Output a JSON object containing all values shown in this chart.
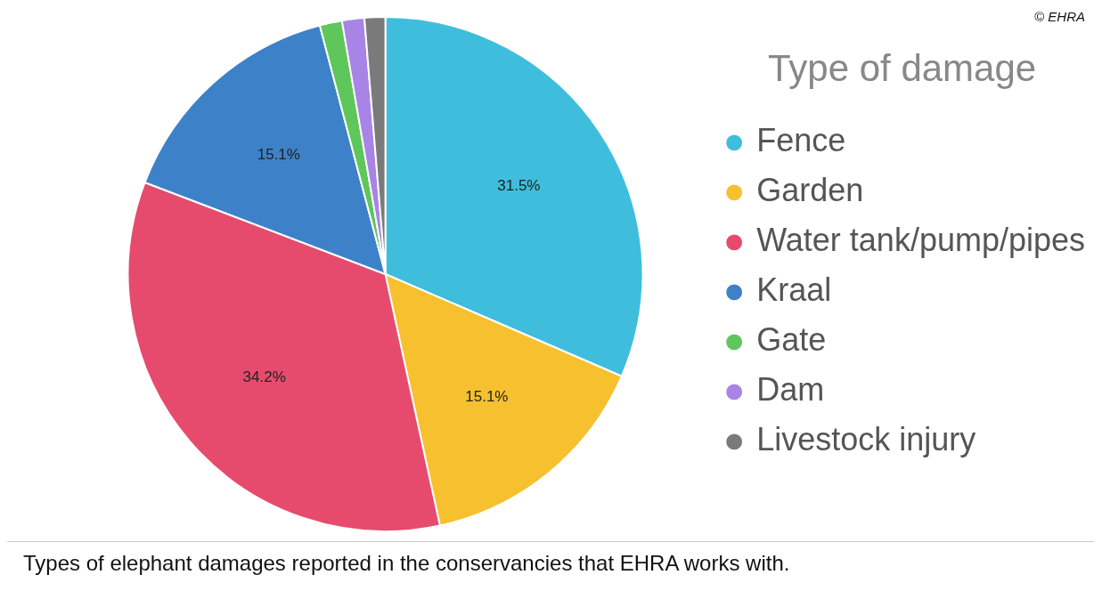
{
  "chart_data": {
    "type": "pie",
    "legend_title": "Type of damage",
    "legend": "right",
    "categories": [
      "Fence",
      "Garden",
      "Water tank/pump/pipes",
      "Kraal",
      "Gate",
      "Dam",
      "Livestock injury"
    ],
    "values": [
      31.5,
      15.1,
      34.2,
      15.1,
      1.4,
      1.4,
      1.3
    ],
    "value_labels": [
      "31.5%",
      "15.1%",
      "34.2%",
      "15.1%",
      null,
      null,
      null
    ],
    "colors": [
      "#3ebedc",
      "#f6c02e",
      "#e64b6e",
      "#3d82c8",
      "#5ec65a",
      "#a784e6",
      "#7a7a7a"
    ],
    "annotations": [
      "© EHRA",
      "Types of elephant damages reported in the conservancies that EHRA works with."
    ]
  }
}
